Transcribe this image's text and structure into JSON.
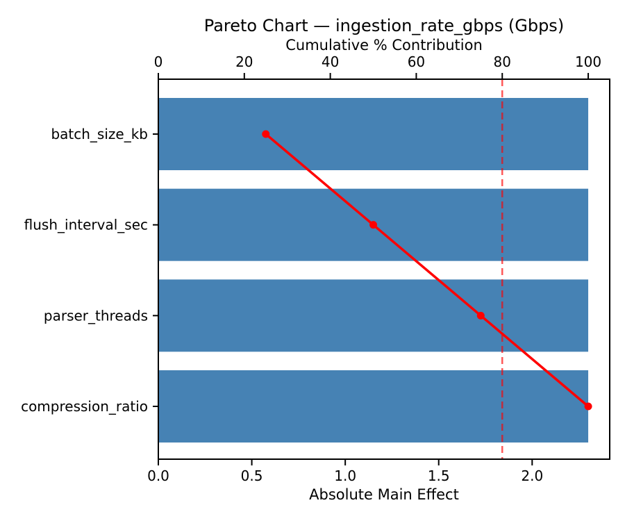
{
  "figure": {
    "background": "#ffffff"
  },
  "chart_data": {
    "type": "bar",
    "subtype": "pareto",
    "orientation": "horizontal",
    "title": "Pareto Chart — ingestion_rate_gbps (Gbps)",
    "xlabel": "Absolute Main Effect",
    "top_axis_label": "Cumulative % Contribution",
    "categories": [
      "batch_size_kb",
      "flush_interval_sec",
      "parser_threads",
      "compression_ratio"
    ],
    "values": [
      2.3,
      2.3,
      2.3,
      2.3
    ],
    "series": [
      {
        "name": "absolute-main-effect-bars",
        "values": [
          2.3,
          2.3,
          2.3,
          2.3
        ]
      },
      {
        "name": "cumulative-percent-line",
        "values": [
          25,
          50,
          75,
          100
        ]
      }
    ],
    "cumulative_pct": [
      25,
      50,
      75,
      100
    ],
    "threshold_pct": 80,
    "x_tick_values": [
      0.0,
      0.5,
      1.0,
      1.5,
      2.0
    ],
    "x_tick_labels": [
      "0.0",
      "0.5",
      "1.0",
      "1.5",
      "2.0"
    ],
    "xlim": [
      0,
      2.415
    ],
    "top_tick_values": [
      0,
      20,
      40,
      60,
      80,
      100
    ],
    "top_tick_labels": [
      "0",
      "20",
      "40",
      "60",
      "80",
      "100"
    ],
    "top_xlim": [
      0,
      105
    ],
    "grid": false,
    "legend": false,
    "colors": {
      "bar": "#4682B4",
      "cumulative_line": "#ff0000",
      "marker": "#ff0000",
      "threshold_line": "rgba(255,0,0,0.65)",
      "spine": "#000000",
      "text": "#000000"
    }
  }
}
